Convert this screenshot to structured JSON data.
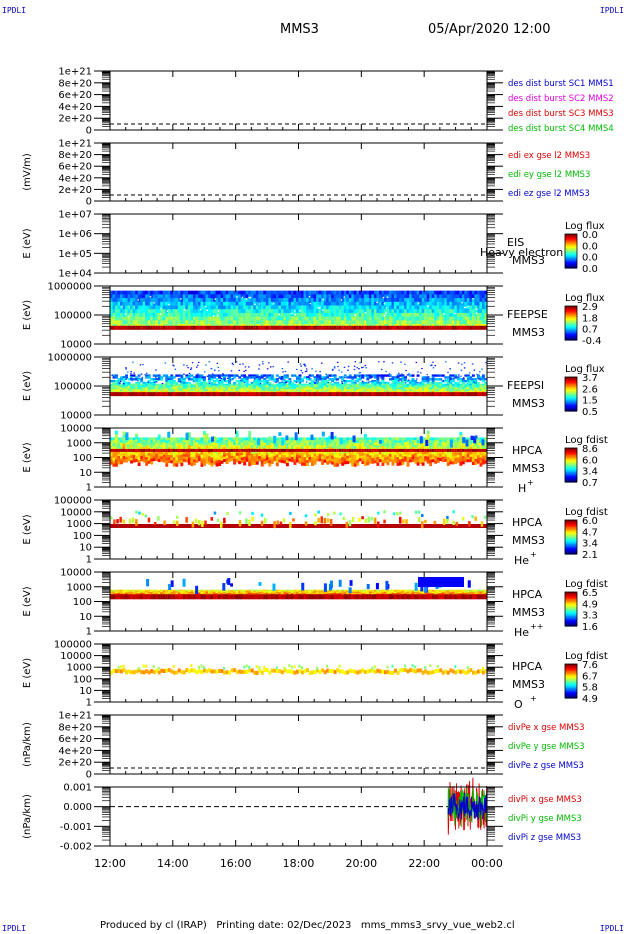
{
  "header": {
    "corner_label": "IPDLI",
    "title": "MMS3",
    "datetime": "05/Apr/2020 12:00"
  },
  "footer": {
    "text": "Produced by cl (IRAP)   Printing date: 02/Dec/2023   mms_mms3_srvy_vue_web2.cl"
  },
  "time_axis": {
    "ticks": [
      "12:00",
      "14:00",
      "16:00",
      "18:00",
      "20:00",
      "22:00",
      "00:00"
    ]
  },
  "colors": {
    "blue": "#0000cc",
    "magenta": "#e000e0",
    "red": "#dd0000",
    "green": "#00bb00"
  },
  "panels": [
    {
      "id": "des-dist",
      "ylabel": "",
      "ticks": [
        "1e+21",
        "8e+20",
        "6e+20",
        "4e+20",
        "2e+20",
        "0"
      ],
      "right_labels": [
        {
          "text": "des dist burst SC1 MMS1",
          "color": "#0000cc"
        },
        {
          "text": "des dist burst SC2 MMS2",
          "color": "#e000e0"
        },
        {
          "text": "des dist burst SC3 MMS3",
          "color": "#dd0000"
        },
        {
          "text": "des dist burst SC4 MMS4",
          "color": "#00bb00"
        }
      ]
    },
    {
      "id": "edi",
      "ylabel": "(mV/m)",
      "ticks": [
        "1e+21",
        "8e+20",
        "6e+20",
        "4e+20",
        "2e+20",
        "0"
      ],
      "right_labels": [
        {
          "text": "edi ex gse l2 MMS3",
          "color": "#dd0000"
        },
        {
          "text": "edi ey gse l2 MMS3",
          "color": "#00bb00"
        },
        {
          "text": "edi ez gse l2 MMS3",
          "color": "#0000cc"
        }
      ]
    },
    {
      "id": "eis",
      "ylabel": "E (eV)",
      "ticks": [
        "1e+07",
        "1e+06",
        "1e+05",
        "1e+04"
      ],
      "instrument": "EIS",
      "sc": "MMS3",
      "extra": "Heavy electron te",
      "colorbar": {
        "title": "Log flux",
        "ticks": [
          "0.0",
          "0.0",
          "0.0",
          "0.0"
        ]
      }
    },
    {
      "id": "feepse",
      "ylabel": "E (eV)",
      "ticks": [
        "1000000",
        "100000",
        "10000"
      ],
      "instrument": "FEEPSE",
      "sc": "MMS3",
      "colorbar": {
        "title": "Log flux",
        "ticks": [
          "2.9",
          "1.8",
          "0.7",
          "-0.4"
        ]
      }
    },
    {
      "id": "feepsi",
      "ylabel": "E (eV)",
      "ticks": [
        "1000000",
        "100000",
        "10000"
      ],
      "instrument": "FEEPSI",
      "sc": "MMS3",
      "colorbar": {
        "title": "Log flux",
        "ticks": [
          "3.7",
          "2.6",
          "1.5",
          "0.5"
        ]
      }
    },
    {
      "id": "hpca-h",
      "ylabel": "E (eV)",
      "ticks": [
        "10000",
        "1000",
        "100",
        "10",
        "1"
      ],
      "instrument": "HPCA",
      "sc": "MMS3",
      "species": "H",
      "charge": "+",
      "colorbar": {
        "title": "Log fdist",
        "ticks": [
          "8.6",
          "6.0",
          "3.4",
          "0.7"
        ]
      }
    },
    {
      "id": "hpca-he",
      "ylabel": "E (eV)",
      "ticks": [
        "100000",
        "10000",
        "1000",
        "100",
        "10",
        "1"
      ],
      "instrument": "HPCA",
      "sc": "MMS3",
      "species": "He",
      "charge": "+",
      "colorbar": {
        "title": "Log fdist",
        "ticks": [
          "6.0",
          "4.7",
          "3.4",
          "2.1"
        ]
      }
    },
    {
      "id": "hpca-hepp",
      "ylabel": "E (eV)",
      "ticks": [
        "10000",
        "1000",
        "100",
        "10",
        "1"
      ],
      "instrument": "HPCA",
      "sc": "MMS3",
      "species": "He",
      "charge": "++",
      "colorbar": {
        "title": "Log fdist",
        "ticks": [
          "6.5",
          "4.9",
          "3.3",
          "1.6"
        ]
      }
    },
    {
      "id": "hpca-o",
      "ylabel": "E (eV)",
      "ticks": [
        "100000",
        "10000",
        "1000",
        "100",
        "10",
        "1"
      ],
      "instrument": "HPCA",
      "sc": "MMS3",
      "species": "O",
      "charge": "+",
      "colorbar": {
        "title": "Log fdist",
        "ticks": [
          "7.6",
          "6.7",
          "5.8",
          "4.9"
        ]
      }
    },
    {
      "id": "divpe",
      "ylabel": "(nPa/km)",
      "ticks": [
        "1e+21",
        "8e+20",
        "6e+20",
        "4e+20",
        "2e+20",
        "0"
      ],
      "right_labels": [
        {
          "text": "divPe x gse MMS3",
          "color": "#dd0000"
        },
        {
          "text": "divPe y gse MMS3",
          "color": "#00bb00"
        },
        {
          "text": "divPe z gse MMS3",
          "color": "#0000cc"
        }
      ]
    },
    {
      "id": "divpi",
      "ylabel": "(nPa/km)",
      "ticks": [
        "0.001",
        "0.000",
        "-0.001",
        "-0.002"
      ],
      "right_labels": [
        {
          "text": "divPi x gse MMS3",
          "color": "#dd0000"
        },
        {
          "text": "divPi y gse MMS3",
          "color": "#00bb00"
        },
        {
          "text": "divPi z gse MMS3",
          "color": "#0000cc"
        }
      ]
    }
  ],
  "chart_data": {
    "type": "heatmap",
    "x_range": [
      "12:00",
      "00:00"
    ],
    "feepse": {
      "energy_band_eV": [
        40000,
        1000000
      ],
      "peak_level_eV": 40000
    },
    "feepsi": {
      "energy_band_eV": [
        50000,
        1000000
      ],
      "peak_level_eV": 60000
    },
    "hpca_h": {
      "energy_band_eV": [
        50,
        10000
      ],
      "peak_level_eV": 500
    },
    "hpca_he": {
      "energy_band_eV": [
        500,
        10000
      ],
      "peak_level_eV": 800
    },
    "hpca_hepp": {
      "energy_band_eV": [
        200,
        3000
      ],
      "peak_level_eV": 900
    },
    "hpca_o": {
      "energy_band_eV": [
        500,
        1500
      ],
      "peak_level_eV": 800
    },
    "divpi": {
      "series": [
        {
          "name": "divPi x gse MMS3",
          "values": [
            0.0,
            0.0,
            0.0,
            0.0012,
            -0.0015,
            0.001,
            -0.0012,
            0.0008
          ]
        },
        {
          "name": "divPi y gse MMS3",
          "values": [
            0.0,
            0.0,
            0.0,
            0.0009,
            -0.001,
            0.0011,
            -0.0009,
            0.0006
          ]
        },
        {
          "name": "divPi z gse MMS3",
          "values": [
            0.0,
            0.0,
            0.0,
            0.0006,
            -0.0008,
            0.0007,
            -0.0006,
            0.0004
          ]
        }
      ],
      "x": [
        "12:00",
        "20:00",
        "22:40",
        "22:50",
        "23:05",
        "23:20",
        "23:35",
        "23:50"
      ],
      "ylim": [
        -0.002,
        0.0015
      ]
    }
  }
}
